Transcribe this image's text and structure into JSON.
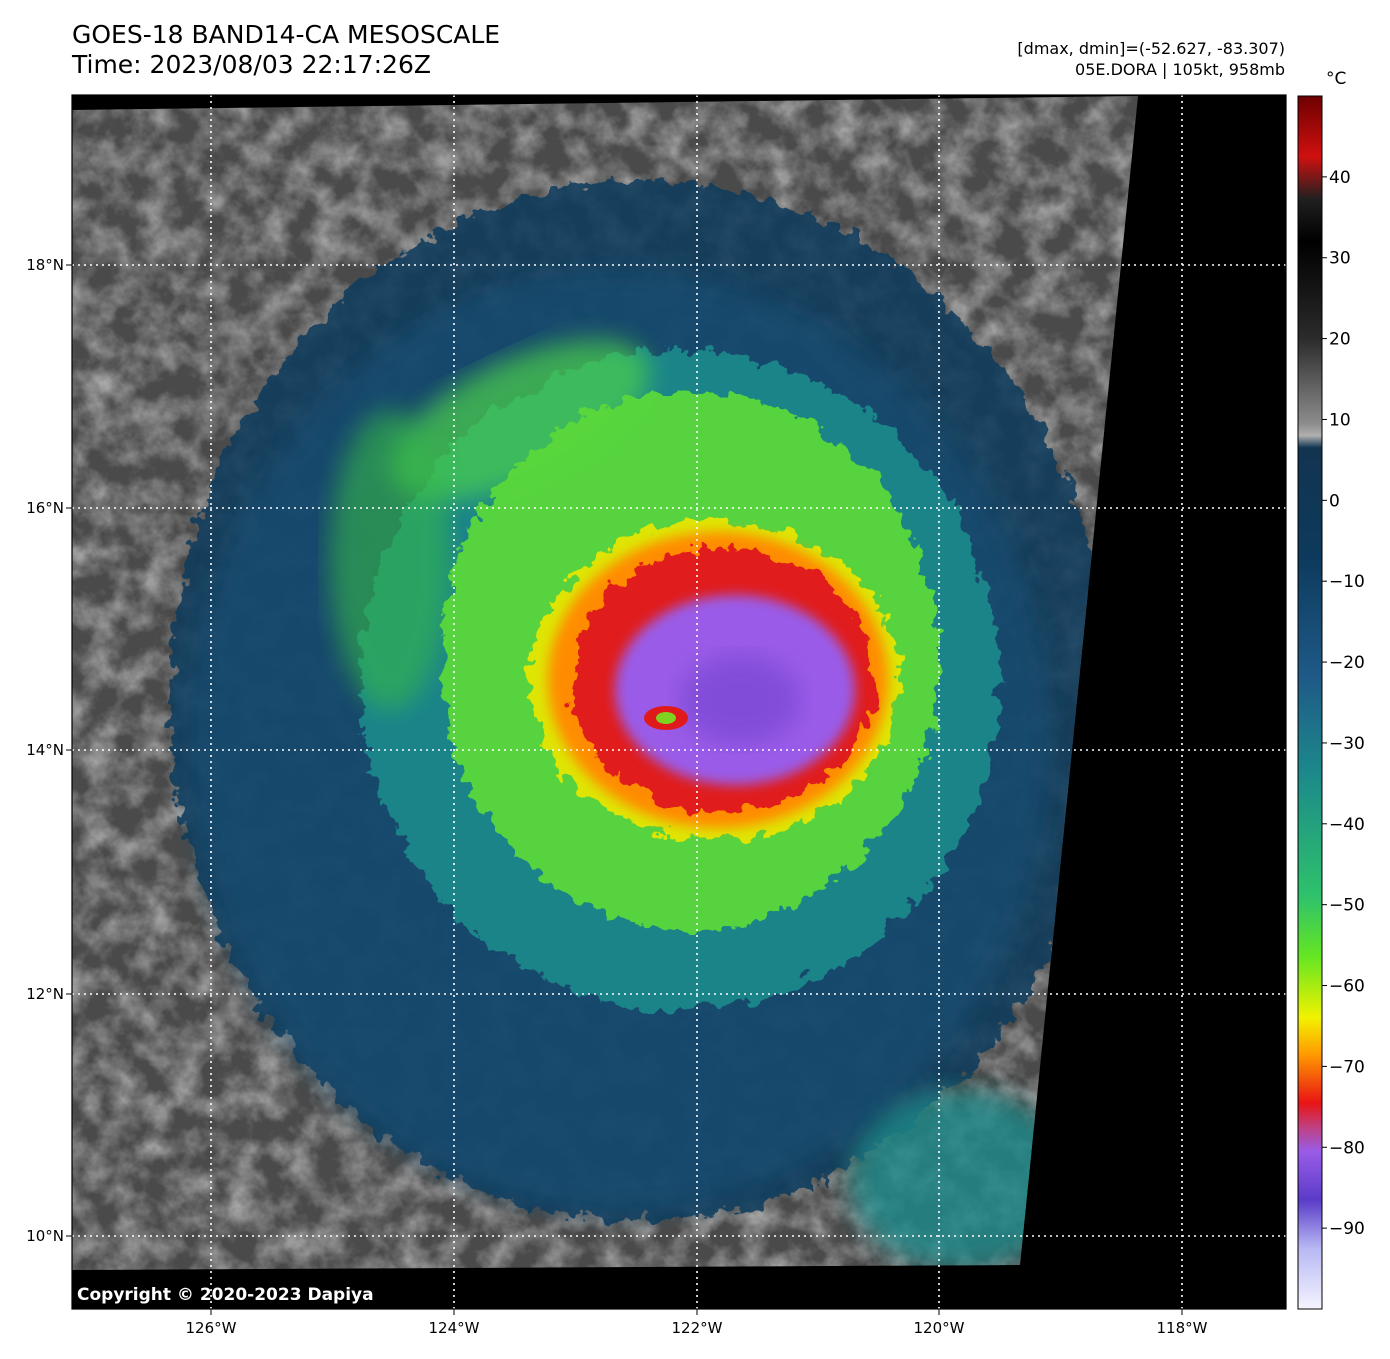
{
  "header": {
    "title_line1": "GOES-18 BAND14-CA MESOSCALE",
    "title_line2": "Time: 2023/08/03 22:17:26Z",
    "dmax_dmin": "[dmax, dmin]=(-52.627, -83.307)",
    "storm_info": "05E.DORA | 105kt, 958mb"
  },
  "map": {
    "lon_labels": [
      "126°W",
      "124°W",
      "122°W",
      "120°W",
      "118°W"
    ],
    "lat_labels": [
      "18°N",
      "16°N",
      "14°N",
      "12°N",
      "10°N"
    ],
    "copyright": "Copyright © 2020-2023 Dapiya",
    "storm_center": {
      "lon": -122.2,
      "lat": 14.25
    }
  },
  "colorbar": {
    "unit": "°C",
    "ticks": [
      "40",
      "30",
      "20",
      "10",
      "0",
      "−10",
      "−20",
      "−30",
      "−40",
      "−50",
      "−60",
      "−70",
      "−80",
      "−90"
    ],
    "range": [
      -100,
      50
    ],
    "colors": {
      "warm_top": "#6e0000",
      "black_band": "#000000",
      "gray": "#808080",
      "dark_blue": "#0d3a5c",
      "teal": "#1f8f8f",
      "green": "#4cd24c",
      "yellow": "#e6e600",
      "orange": "#ff8c00",
      "red": "#e01a1a",
      "purple": "#9a5ce8",
      "lavender": "#e0e0ff"
    }
  }
}
